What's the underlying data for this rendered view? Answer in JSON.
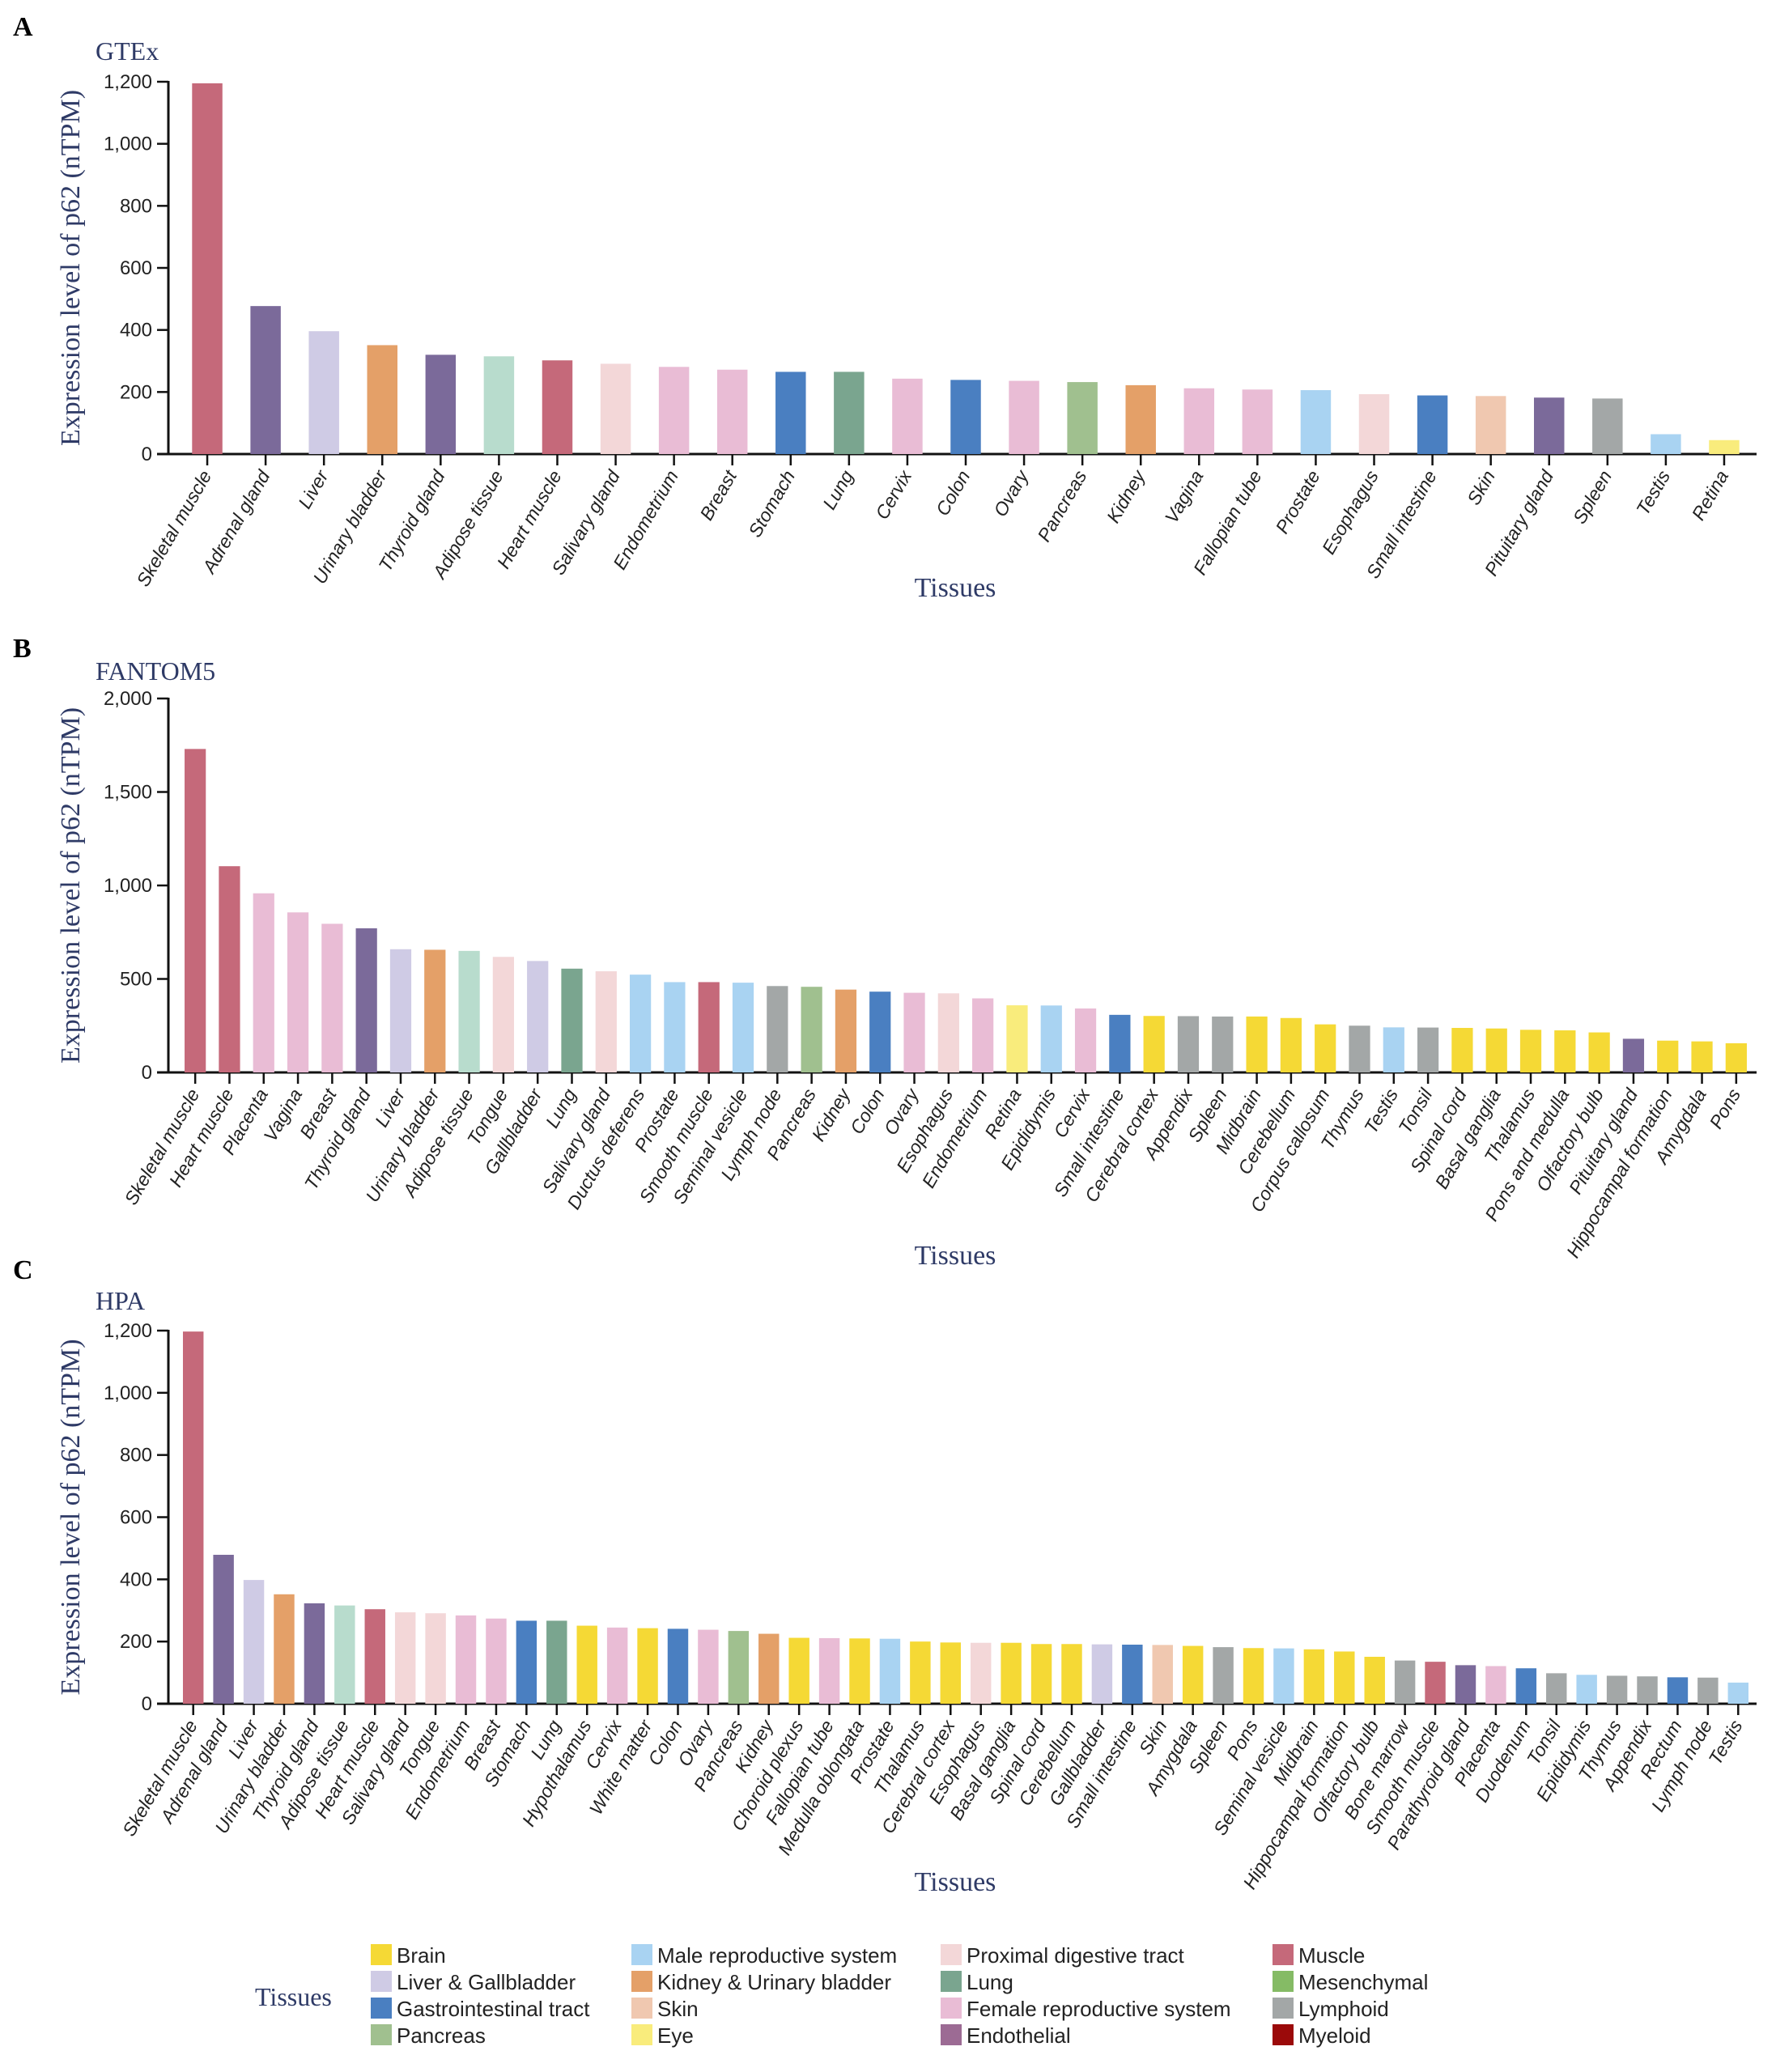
{
  "chart_data": [
    {
      "panel": "A",
      "type": "bar",
      "title": "GTEx",
      "xlabel": "Tissues",
      "ylabel": "Expression level of p62 (nTPM)",
      "ylim": [
        0,
        1200
      ],
      "yticks": [
        0,
        200,
        400,
        600,
        800,
        1000,
        1200
      ],
      "ytick_labels": [
        "0",
        "200",
        "400",
        "600",
        "800",
        "1,000",
        "1,200"
      ],
      "categories": [
        "Skeletal muscle",
        "Adrenal gland",
        "Liver",
        "Urinary bladder",
        "Thyroid gland",
        "Adipose tissue",
        "Heart muscle",
        "Salivary gland",
        "Endometrium",
        "Breast",
        "Stomach",
        "Lung",
        "Cervix",
        "Colon",
        "Ovary",
        "Pancreas",
        "Kidney",
        "Vagina",
        "Fallopian tube",
        "Prostate",
        "Esophagus",
        "Small intestine",
        "Skin",
        "Pituitary gland",
        "Spleen",
        "Testis",
        "Retina"
      ],
      "values": [
        1195,
        477,
        396,
        351,
        320,
        315,
        302,
        291,
        281,
        272,
        265,
        265,
        243,
        239,
        236,
        232,
        222,
        212,
        208,
        206,
        193,
        189,
        187,
        182,
        179,
        64,
        45
      ],
      "groups": [
        "Muscle",
        "Endocrine",
        "Liver & Gallbladder",
        "Kidney & Urinary bladder",
        "Endocrine",
        "Adipose",
        "Muscle",
        "Proximal digestive tract",
        "Female reproductive system",
        "Female reproductive system",
        "Gastrointestinal tract",
        "Lung",
        "Female reproductive system",
        "Gastrointestinal tract",
        "Female reproductive system",
        "Pancreas",
        "Kidney & Urinary bladder",
        "Female reproductive system",
        "Female reproductive system",
        "Male reproductive system",
        "Proximal digestive tract",
        "Gastrointestinal tract",
        "Skin",
        "Endocrine",
        "Lymphoid",
        "Male reproductive system",
        "Eye"
      ]
    },
    {
      "panel": "B",
      "type": "bar",
      "title": "FANTOM5",
      "xlabel": "Tissues",
      "ylabel": "Expression level of p62 (nTPM)",
      "ylim": [
        0,
        2000
      ],
      "yticks": [
        0,
        500,
        1000,
        1500,
        2000
      ],
      "ytick_labels": [
        "0",
        "500",
        "1,000",
        "1,500",
        "2,000"
      ],
      "categories": [
        "Skeletal muscle",
        "Heart muscle",
        "Placenta",
        "Vagina",
        "Breast",
        "Thyroid gland",
        "Liver",
        "Urinary bladder",
        "Adipose tissue",
        "Tongue",
        "Gallbladder",
        "Lung",
        "Salivary gland",
        "Ductus deferens",
        "Prostate",
        "Smooth muscle",
        "Seminal vesicle",
        "Lymph node",
        "Pancreas",
        "Kidney",
        "Colon",
        "Ovary",
        "Esophagus",
        "Endometrium",
        "Retina",
        "Epididymis",
        "Cervix",
        "Small intestine",
        "Cerebral cortex",
        "Appendix",
        "Spleen",
        "Midbrain",
        "Cerebellum",
        "Corpus callosum",
        "Thymus",
        "Testis",
        "Tonsil",
        "Spinal cord",
        "Basal ganglia",
        "Thalamus",
        "Pons and medulla",
        "Olfactory bulb",
        "Pituitary gland",
        "Hippocampal formation",
        "Amygdala",
        "Pons"
      ],
      "values": [
        1730,
        1103,
        958,
        856,
        795,
        771,
        659,
        656,
        650,
        618,
        596,
        555,
        541,
        523,
        483,
        483,
        480,
        462,
        458,
        443,
        432,
        426,
        423,
        396,
        359,
        358,
        342,
        308,
        302,
        301,
        299,
        299,
        291,
        257,
        250,
        241,
        240,
        238,
        235,
        228,
        225,
        214,
        180,
        170,
        166,
        156
      ],
      "groups": [
        "Muscle",
        "Muscle",
        "Female reproductive system",
        "Female reproductive system",
        "Female reproductive system",
        "Endocrine",
        "Liver & Gallbladder",
        "Kidney & Urinary bladder",
        "Adipose",
        "Proximal digestive tract",
        "Liver & Gallbladder",
        "Lung",
        "Proximal digestive tract",
        "Male reproductive system",
        "Male reproductive system",
        "Muscle",
        "Male reproductive system",
        "Lymphoid",
        "Pancreas",
        "Kidney & Urinary bladder",
        "Gastrointestinal tract",
        "Female reproductive system",
        "Proximal digestive tract",
        "Female reproductive system",
        "Eye",
        "Male reproductive system",
        "Female reproductive system",
        "Gastrointestinal tract",
        "Brain",
        "Lymphoid",
        "Lymphoid",
        "Brain",
        "Brain",
        "Brain",
        "Lymphoid",
        "Male reproductive system",
        "Lymphoid",
        "Brain",
        "Brain",
        "Brain",
        "Brain",
        "Brain",
        "Endocrine",
        "Brain",
        "Brain",
        "Brain"
      ]
    },
    {
      "panel": "C",
      "type": "bar",
      "title": "HPA",
      "xlabel": "Tissues",
      "ylabel": "Expression level of p62 (nTPM)",
      "ylim": [
        0,
        1200
      ],
      "yticks": [
        0,
        200,
        400,
        600,
        800,
        1000,
        1200
      ],
      "ytick_labels": [
        "0",
        "200",
        "400",
        "600",
        "800",
        "1,000",
        "1,200"
      ],
      "categories": [
        "Skeletal muscle",
        "Adrenal gland",
        "Liver",
        "Urinary bladder",
        "Thyroid gland",
        "Adipose tissue",
        "Heart muscle",
        "Salivary gland",
        "Tongue",
        "Endometrium",
        "Breast",
        "Stomach",
        "Lung",
        "Hypothalamus",
        "Cervix",
        "White matter",
        "Colon",
        "Ovary",
        "Pancreas",
        "Kidney",
        "Choroid plexus",
        "Fallopian tube",
        "Medulla oblongata",
        "Prostate",
        "Thalamus",
        "Cerebral cortex",
        "Esophagus",
        "Basal ganglia",
        "Spinal cord",
        "Cerebellum",
        "Gallbladder",
        "Small intestine",
        "Skin",
        "Amygdala",
        "Spleen",
        "Pons",
        "Seminal vesicle",
        "Midbrain",
        "Hippocampal formation",
        "Olfactory bulb",
        "Bone marrow",
        "Smooth muscle",
        "Parathyroid gland",
        "Placenta",
        "Duodenum",
        "Tonsil",
        "Epididymis",
        "Thymus",
        "Appendix",
        "Rectum",
        "Lymph node",
        "Testis"
      ],
      "values": [
        1197,
        479,
        398,
        352,
        323,
        316,
        304,
        294,
        291,
        284,
        274,
        267,
        267,
        251,
        245,
        243,
        241,
        238,
        234,
        225,
        212,
        211,
        210,
        209,
        200,
        197,
        196,
        196,
        192,
        192,
        191,
        190,
        189,
        186,
        182,
        179,
        178,
        175,
        168,
        151,
        139,
        135,
        124,
        121,
        114,
        98,
        93,
        90,
        88,
        85,
        84,
        68
      ],
      "groups": [
        "Muscle",
        "Endocrine",
        "Liver & Gallbladder",
        "Kidney & Urinary bladder",
        "Endocrine",
        "Adipose",
        "Muscle",
        "Proximal digestive tract",
        "Proximal digestive tract",
        "Female reproductive system",
        "Female reproductive system",
        "Gastrointestinal tract",
        "Lung",
        "Brain",
        "Female reproductive system",
        "Brain",
        "Gastrointestinal tract",
        "Female reproductive system",
        "Pancreas",
        "Kidney & Urinary bladder",
        "Brain",
        "Female reproductive system",
        "Brain",
        "Male reproductive system",
        "Brain",
        "Brain",
        "Proximal digestive tract",
        "Brain",
        "Brain",
        "Brain",
        "Liver & Gallbladder",
        "Gastrointestinal tract",
        "Skin",
        "Brain",
        "Lymphoid",
        "Brain",
        "Male reproductive system",
        "Brain",
        "Brain",
        "Brain",
        "Lymphoid",
        "Muscle",
        "Endocrine",
        "Female reproductive system",
        "Gastrointestinal tract",
        "Lymphoid",
        "Male reproductive system",
        "Lymphoid",
        "Lymphoid",
        "Gastrointestinal tract",
        "Lymphoid",
        "Male reproductive system"
      ]
    }
  ],
  "group_colors": {
    "Brain": "#f5d935",
    "Liver & Gallbladder": "#cfcbe5",
    "Gastrointestinal tract": "#4a7fc1",
    "Pancreas": "#a0c08f",
    "Male reproductive system": "#a9d3f2",
    "Kidney & Urinary bladder": "#e4a068",
    "Skin": "#f0c8b0",
    "Eye": "#f9ec7c",
    "Proximal digestive tract": "#f3d7d8",
    "Lung": "#7aa58f",
    "Female reproductive system": "#e9bcd5",
    "Endothelial": "#9c6b94",
    "Muscle": "#c5697a",
    "Mesenchymal": "#85bb65",
    "Lymphoid": "#a3a7a7",
    "Myeloid": "#9b0a0a",
    "Endocrine": "#7b6a9a",
    "Adipose": "#b8dccd"
  },
  "panel_letters": [
    "A",
    "B",
    "C"
  ],
  "legend": {
    "title": "Tissues",
    "columns": [
      [
        "Brain",
        "Liver & Gallbladder",
        "Gastrointestinal tract",
        "Pancreas"
      ],
      [
        "Male reproductive system",
        "Kidney & Urinary bladder",
        "Skin",
        "Eye"
      ],
      [
        "Proximal digestive tract",
        "Lung",
        "Female reproductive system",
        "Endothelial"
      ],
      [
        "Muscle",
        "Mesenchymal",
        "Lymphoid",
        "Myeloid"
      ]
    ]
  }
}
